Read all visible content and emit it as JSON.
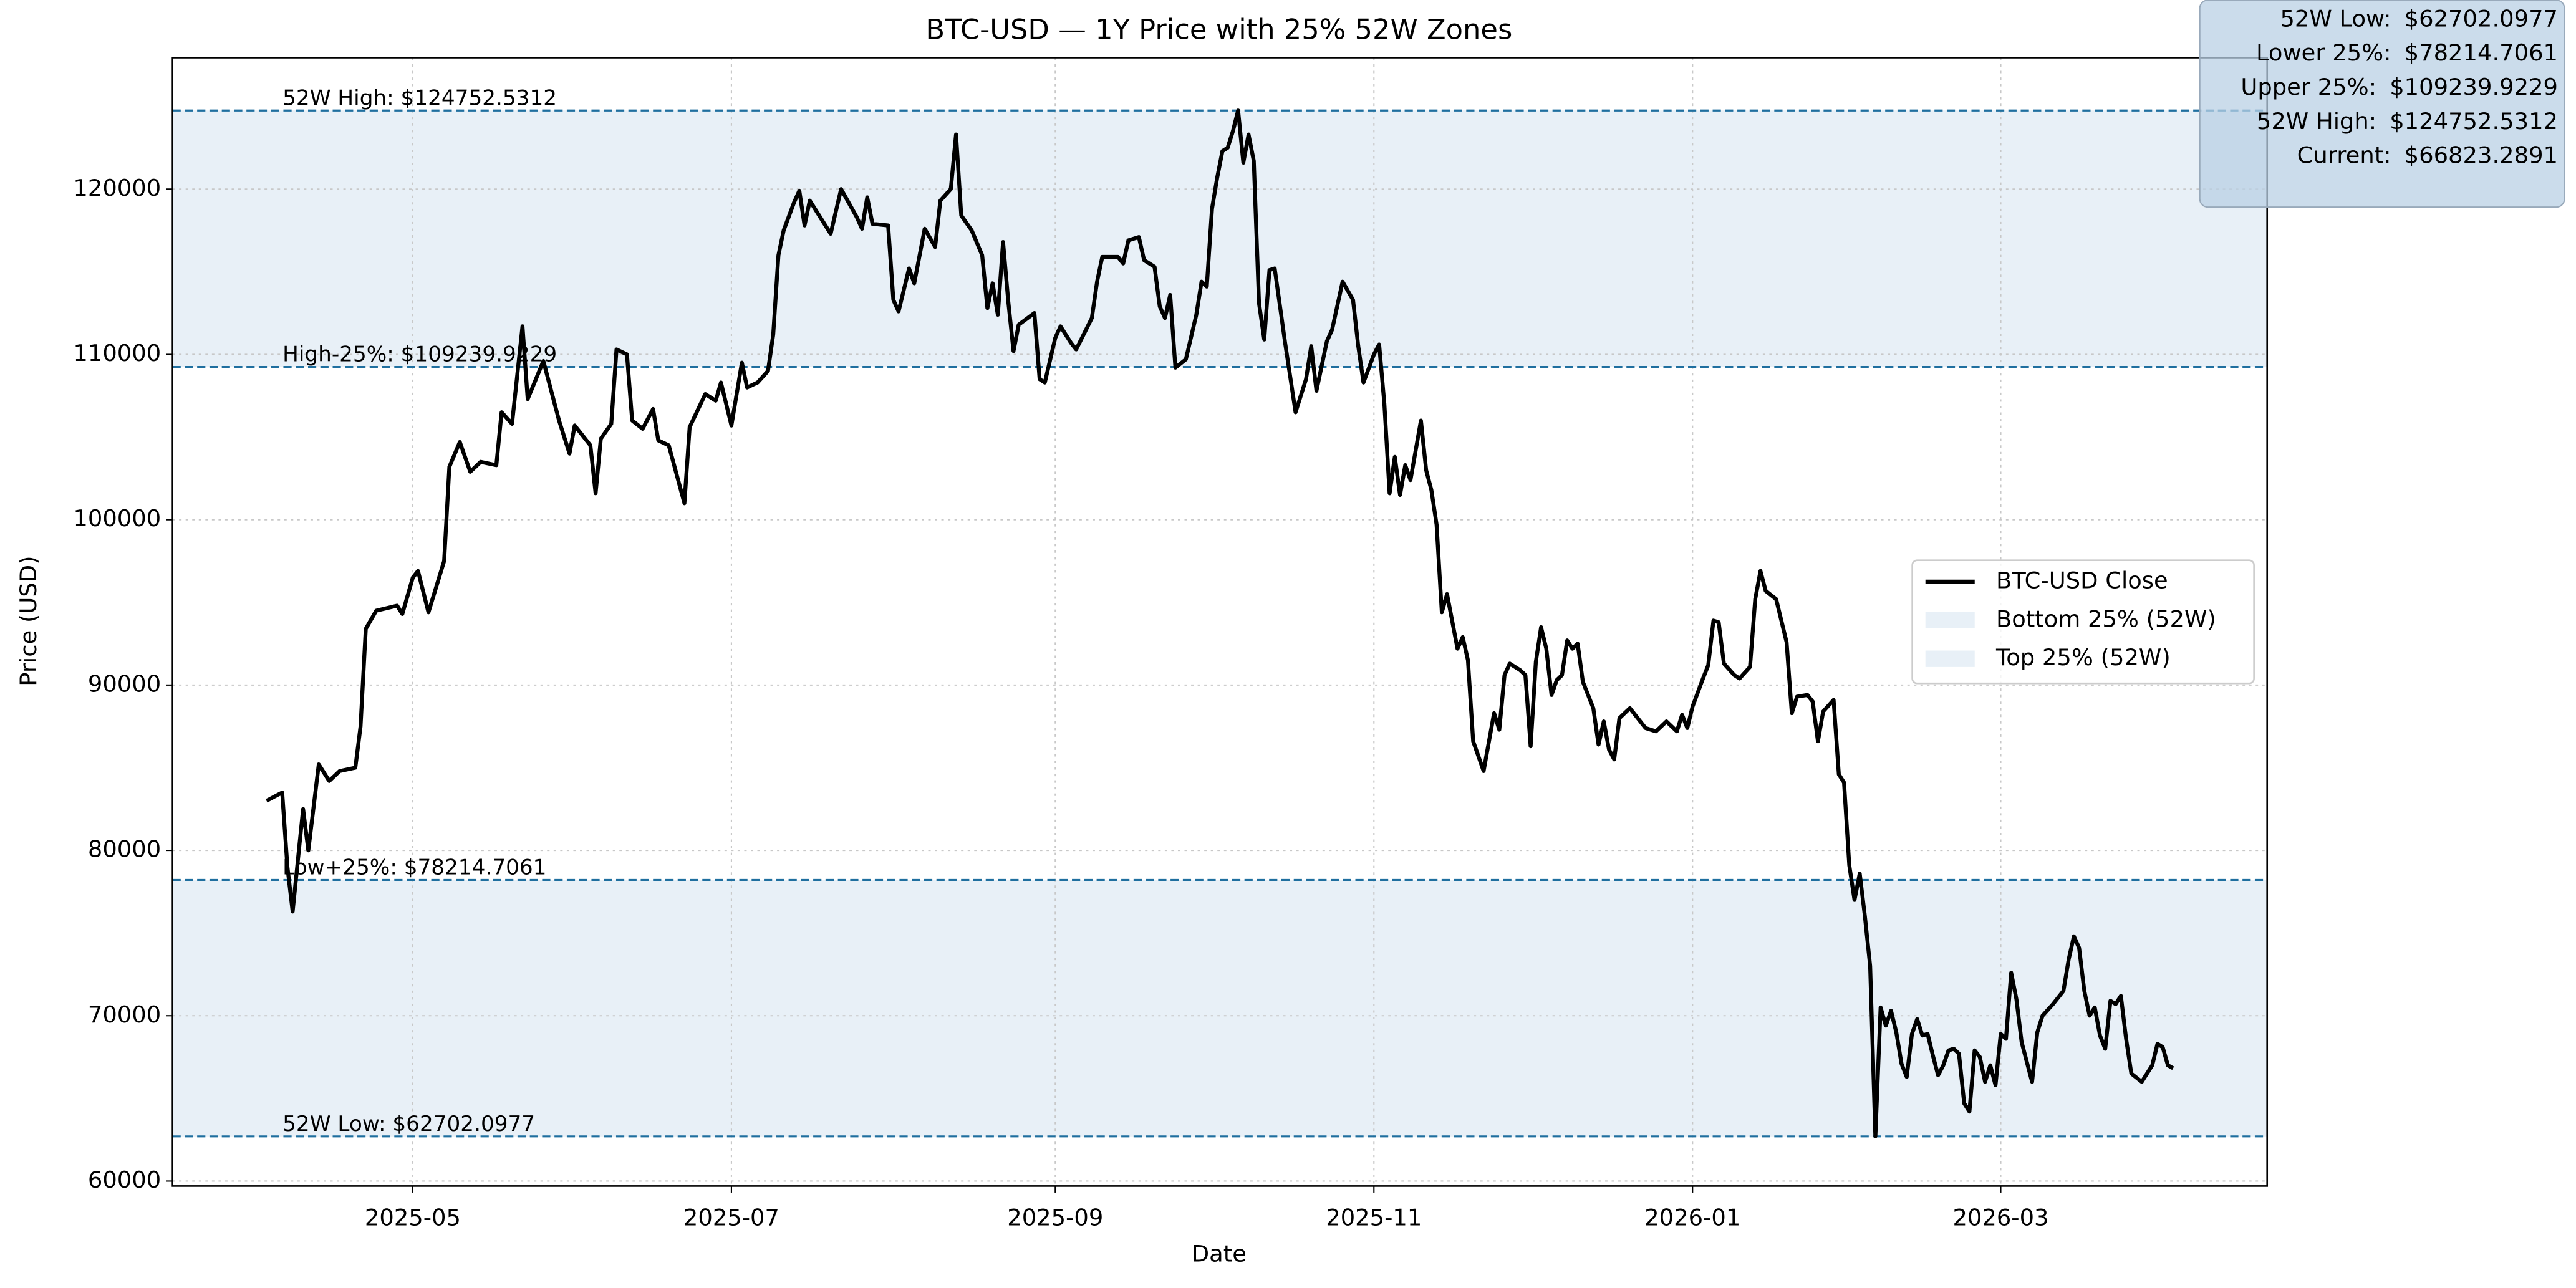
{
  "chart_data": {
    "type": "line",
    "title": "BTC-USD — 1Y Price with 25% 52W Zones",
    "xlabel": "Date",
    "ylabel": "Price (USD)",
    "xlim": [
      "2025-03-16",
      "2026-04-21"
    ],
    "xticks": [
      "2025-05",
      "2025-07",
      "2025-09",
      "2025-11",
      "2026-01",
      "2026-03"
    ],
    "ylim": [
      59700,
      127950
    ],
    "yticks": [
      60000,
      70000,
      80000,
      90000,
      100000,
      110000,
      120000
    ],
    "grid": true,
    "legend": "center right",
    "series": [
      {
        "name": "BTC-USD Close",
        "color": "#000000",
        "x": [
          "2025-04-03",
          "2025-04-06",
          "2025-04-07",
          "2025-04-08",
          "2025-04-10",
          "2025-04-11",
          "2025-04-13",
          "2025-04-15",
          "2025-04-17",
          "2025-04-20",
          "2025-04-21",
          "2025-04-22",
          "2025-04-24",
          "2025-04-28",
          "2025-04-29",
          "2025-05-01",
          "2025-05-02",
          "2025-05-04",
          "2025-05-07",
          "2025-05-08",
          "2025-05-10",
          "2025-05-12",
          "2025-05-14",
          "2025-05-17",
          "2025-05-18",
          "2025-05-20",
          "2025-05-22",
          "2025-05-23",
          "2025-05-26",
          "2025-05-29",
          "2025-05-31",
          "2025-06-01",
          "2025-06-04",
          "2025-06-05",
          "2025-06-06",
          "2025-06-08",
          "2025-06-09",
          "2025-06-11",
          "2025-06-12",
          "2025-06-14",
          "2025-06-16",
          "2025-06-17",
          "2025-06-19",
          "2025-06-22",
          "2025-06-23",
          "2025-06-26",
          "2025-06-28",
          "2025-06-29",
          "2025-07-01",
          "2025-07-03",
          "2025-07-04",
          "2025-07-06",
          "2025-07-08",
          "2025-07-09",
          "2025-07-10",
          "2025-07-11",
          "2025-07-13",
          "2025-07-14",
          "2025-07-15",
          "2025-07-16",
          "2025-07-19",
          "2025-07-20",
          "2025-07-22",
          "2025-07-25",
          "2025-07-26",
          "2025-07-27",
          "2025-07-28",
          "2025-07-31",
          "2025-08-01",
          "2025-08-02",
          "2025-08-04",
          "2025-08-05",
          "2025-08-07",
          "2025-08-09",
          "2025-08-10",
          "2025-08-12",
          "2025-08-13",
          "2025-08-14",
          "2025-08-16",
          "2025-08-18",
          "2025-08-19",
          "2025-08-20",
          "2025-08-21",
          "2025-08-22",
          "2025-08-23",
          "2025-08-24",
          "2025-08-25",
          "2025-08-28",
          "2025-08-29",
          "2025-08-30",
          "2025-09-01",
          "2025-09-02",
          "2025-09-04",
          "2025-09-05",
          "2025-09-08",
          "2025-09-09",
          "2025-09-10",
          "2025-09-13",
          "2025-09-14",
          "2025-09-15",
          "2025-09-17",
          "2025-09-18",
          "2025-09-20",
          "2025-09-21",
          "2025-09-22",
          "2025-09-23",
          "2025-09-24",
          "2025-09-26",
          "2025-09-28",
          "2025-09-29",
          "2025-09-30",
          "2025-10-01",
          "2025-10-02",
          "2025-10-03",
          "2025-10-04",
          "2025-10-05",
          "2025-10-06",
          "2025-10-07",
          "2025-10-08",
          "2025-10-09",
          "2025-10-10",
          "2025-10-11",
          "2025-10-12",
          "2025-10-13",
          "2025-10-15",
          "2025-10-17",
          "2025-10-19",
          "2025-10-20",
          "2025-10-21",
          "2025-10-23",
          "2025-10-24",
          "2025-10-26",
          "2025-10-28",
          "2025-10-29",
          "2025-10-30",
          "2025-11-01",
          "2025-11-02",
          "2025-11-03",
          "2025-11-04",
          "2025-11-05",
          "2025-11-06",
          "2025-11-07",
          "2025-11-08",
          "2025-11-10",
          "2025-11-11",
          "2025-11-12",
          "2025-11-13",
          "2025-11-14",
          "2025-11-15",
          "2025-11-17",
          "2025-11-18",
          "2025-11-19",
          "2025-11-20",
          "2025-11-22",
          "2025-11-24",
          "2025-11-25",
          "2025-11-26",
          "2025-11-27",
          "2025-11-29",
          "2025-11-30",
          "2025-12-01",
          "2025-12-02",
          "2025-12-03",
          "2025-12-04",
          "2025-12-05",
          "2025-12-06",
          "2025-12-07",
          "2025-12-08",
          "2025-12-09",
          "2025-12-10",
          "2025-12-11",
          "2025-12-13",
          "2025-12-14",
          "2025-12-15",
          "2025-12-16",
          "2025-12-17",
          "2025-12-18",
          "2025-12-20",
          "2025-12-23",
          "2025-12-25",
          "2025-12-27",
          "2025-12-29",
          "2025-12-30",
          "2025-12-31",
          "2026-01-01",
          "2026-01-03",
          "2026-01-04",
          "2026-01-05",
          "2026-01-06",
          "2026-01-07",
          "2026-01-09",
          "2026-01-10",
          "2026-01-12",
          "2026-01-13",
          "2026-01-14",
          "2026-01-15",
          "2026-01-17",
          "2026-01-19",
          "2026-01-20",
          "2026-01-21",
          "2026-01-23",
          "2026-01-24",
          "2026-01-25",
          "2026-01-26",
          "2026-01-28",
          "2026-01-29",
          "2026-01-30",
          "2026-01-31",
          "2026-02-01",
          "2026-02-02",
          "2026-02-03",
          "2026-02-04",
          "2026-02-05",
          "2026-02-06",
          "2026-02-07",
          "2026-02-08",
          "2026-02-09",
          "2026-02-10",
          "2026-02-11",
          "2026-02-12",
          "2026-02-13",
          "2026-02-14",
          "2026-02-15",
          "2026-02-16",
          "2026-02-17",
          "2026-02-18",
          "2026-02-19",
          "2026-02-20",
          "2026-02-21",
          "2026-02-22",
          "2026-02-23",
          "2026-02-24",
          "2026-02-25",
          "2026-02-26",
          "2026-02-27",
          "2026-02-28",
          "2026-03-01",
          "2026-03-02",
          "2026-03-03",
          "2026-03-04",
          "2026-03-05",
          "2026-03-06",
          "2026-03-07",
          "2026-03-08",
          "2026-03-09",
          "2026-03-11",
          "2026-03-13",
          "2026-03-14",
          "2026-03-15",
          "2026-03-16",
          "2026-03-17",
          "2026-03-18",
          "2026-03-19",
          "2026-03-20",
          "2026-03-21",
          "2026-03-22",
          "2026-03-23",
          "2026-03-24",
          "2026-03-25",
          "2026-03-26",
          "2026-03-28",
          "2026-03-30",
          "2026-03-31",
          "2026-04-01",
          "2026-04-02",
          "2026-04-03"
        ],
        "values": [
          83000,
          83500,
          79000,
          76300,
          82500,
          80000,
          85200,
          84200,
          84800,
          85000,
          87500,
          93400,
          94500,
          94800,
          94300,
          96500,
          96900,
          94400,
          97500,
          103200,
          104700,
          102900,
          103500,
          103300,
          106500,
          105800,
          111700,
          107300,
          109600,
          106000,
          104000,
          105700,
          104500,
          101600,
          104900,
          105800,
          110300,
          110000,
          106000,
          105500,
          106700,
          104800,
          104500,
          101000,
          105600,
          107600,
          107200,
          108300,
          105700,
          109500,
          108000,
          108300,
          109000,
          111200,
          116000,
          117500,
          119200,
          119900,
          117800,
          119300,
          117800,
          117300,
          120000,
          118300,
          117600,
          119500,
          117900,
          117800,
          113300,
          112600,
          115200,
          114300,
          117600,
          116500,
          119300,
          120000,
          123300,
          118400,
          117500,
          116000,
          112800,
          114300,
          112400,
          116800,
          113200,
          110200,
          111800,
          112500,
          108500,
          108300,
          111000,
          111700,
          110700,
          110300,
          112200,
          114400,
          115900,
          115900,
          115500,
          116900,
          117100,
          115700,
          115300,
          112900,
          112200,
          113600,
          109200,
          109700,
          112400,
          114400,
          114100,
          118800,
          120700,
          122300,
          122500,
          123500,
          124752.5312,
          121600,
          123300,
          121700,
          113100,
          110900,
          115100,
          115200,
          110700,
          106500,
          108500,
          110500,
          107800,
          110800,
          111500,
          114400,
          113300,
          110500,
          108300,
          110000,
          110600,
          107000,
          101600,
          103800,
          101500,
          103300,
          102400,
          106000,
          103000,
          101800,
          99700,
          94400,
          95500,
          92200,
          92900,
          91500,
          86600,
          84800,
          88300,
          87300,
          90600,
          91300,
          90900,
          90600,
          86300,
          91400,
          93500,
          92200,
          89400,
          90300,
          90600,
          92700,
          92200,
          92500,
          90200,
          88600,
          86400,
          87800,
          86100,
          85500,
          88000,
          88600,
          87400,
          87200,
          87800,
          87200,
          88200,
          87400,
          88700,
          90400,
          91200,
          93900,
          93800,
          91300,
          90600,
          90400,
          91100,
          95200,
          96900,
          95700,
          95200,
          92600,
          88300,
          89300,
          89400,
          89000,
          86600,
          88400,
          89100,
          84600,
          84100,
          79100,
          77000,
          78600,
          76000,
          73000,
          62702.0977,
          70500,
          69400,
          70300,
          69000,
          67100,
          66300,
          68900,
          69800,
          68800,
          68900,
          67600,
          66400,
          67000,
          67900,
          68000,
          67700,
          64700,
          64200,
          67900,
          67500,
          66000,
          67000,
          65800,
          68900,
          68600,
          72600,
          71000,
          68400,
          67200,
          66000,
          69000,
          70000,
          70700,
          71500,
          73400,
          74800,
          74100,
          71500,
          70000,
          70500,
          68800,
          68000,
          70900,
          70700,
          71200,
          68600,
          66500,
          66000,
          67000,
          68300,
          68100,
          67000,
          66823.2891
        ]
      }
    ],
    "zones": [
      {
        "name": "Bottom 25% (52W)",
        "from": 62702.0977,
        "to": 78214.7061,
        "color": "#e8f0f7"
      },
      {
        "name": "Top 25% (52W)",
        "from": 109239.9229,
        "to": 124752.5312,
        "color": "#e8f0f7"
      }
    ],
    "hlines": [
      {
        "value": 124752.5312,
        "label": "52W High: $124752.5312",
        "color": "#1f6f9f"
      },
      {
        "value": 109239.9229,
        "label": "High-25%: $109239.9229",
        "color": "#1f6f9f"
      },
      {
        "value": 78214.7061,
        "label": "Low+25%: $78214.7061",
        "color": "#1f6f9f"
      },
      {
        "value": 62702.0977,
        "label": "52W Low: $62702.0977",
        "color": "#1f6f9f"
      }
    ],
    "stats": [
      {
        "name": "52W Low:",
        "value": 62702.0977,
        "label": "$62702.0977"
      },
      {
        "name": "Lower 25%:",
        "value": 78214.7061,
        "label": "$78214.7061"
      },
      {
        "name": "Upper 25%:",
        "value": 109239.9229,
        "label": "$109239.9229"
      },
      {
        "name": "52W High:",
        "value": 124752.5312,
        "label": "$124752.5312"
      },
      {
        "name": "Current:",
        "value": 66823.2891,
        "label": "$66823.2891"
      }
    ]
  }
}
